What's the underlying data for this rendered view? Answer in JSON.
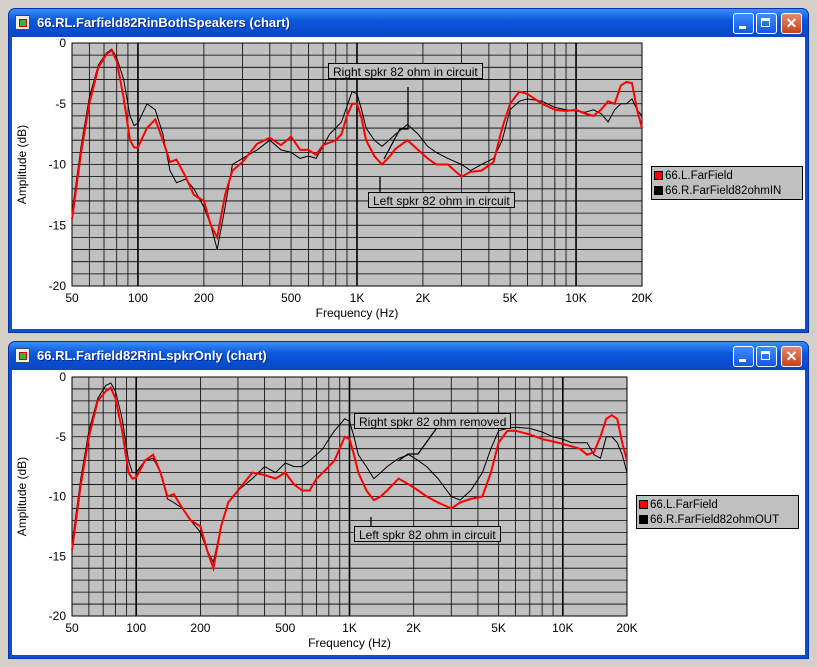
{
  "windows": [
    {
      "title": "66.RL.Farfield82RinBothSpeakers (chart)",
      "legend": [
        {
          "name": "66.L.FarField",
          "color": "#ff0000"
        },
        {
          "name": "66.R.FarField82ohmIN",
          "color": "#000000"
        }
      ],
      "annotations": [
        {
          "text": "Right spkr 82 ohm in circuit"
        },
        {
          "text": "Left spkr 82 ohm in circuit"
        }
      ]
    },
    {
      "title": "66.RL.Farfield82RinLspkrOnly (chart)",
      "legend": [
        {
          "name": "66.L.FarField",
          "color": "#ff0000"
        },
        {
          "name": "66.R.FarField82ohmOUT",
          "color": "#000000"
        }
      ],
      "annotations": [
        {
          "text": "Right spkr 82 ohm removed"
        },
        {
          "text": "Left spkr 82 ohm in circuit"
        }
      ]
    }
  ],
  "chart_data": [
    {
      "type": "line",
      "xlabel": "Frequency (Hz)",
      "ylabel": "Amplitude (dB)",
      "xscale": "log",
      "xlim": [
        50,
        20000
      ],
      "ylim": [
        -20,
        0
      ],
      "x_ticks": [
        50,
        100,
        200,
        500,
        1000,
        2000,
        5000,
        10000,
        20000
      ],
      "x_tick_labels": [
        "50",
        "100",
        "200",
        "500",
        "1K",
        "2K",
        "5K",
        "10K",
        "20K"
      ],
      "y_ticks": [
        0,
        -5,
        -10,
        -15,
        -20
      ],
      "y_tick_labels": [
        "0",
        "-5",
        "-10",
        "-15",
        "-20"
      ],
      "grid": true,
      "legend_position": "right",
      "series": [
        {
          "name": "66.L.FarField",
          "color": "#ff0000",
          "x": [
            50,
            55,
            60,
            66,
            72,
            76,
            80,
            86,
            92,
            96,
            100,
            110,
            120,
            130,
            140,
            150,
            165,
            180,
            200,
            215,
            230,
            250,
            270,
            300,
            350,
            400,
            450,
            500,
            550,
            600,
            650,
            700,
            750,
            800,
            850,
            900,
            950,
            1000,
            1050,
            1100,
            1200,
            1300,
            1400,
            1500,
            1700,
            1900,
            2100,
            2300,
            2600,
            3000,
            3300,
            3700,
            4200,
            4600,
            5000,
            5500,
            6000,
            7000,
            8000,
            9000,
            10000,
            11000,
            12000,
            13000,
            14000,
            15000,
            16000,
            17000,
            18000,
            19000,
            20000
          ],
          "y": [
            -14.5,
            -9,
            -5,
            -2,
            -0.9,
            -0.6,
            -1.5,
            -4.5,
            -8,
            -8.6,
            -8.6,
            -7,
            -6.3,
            -8,
            -9.8,
            -9.6,
            -11,
            -12.5,
            -13,
            -15,
            -16,
            -12.5,
            -10.5,
            -9.8,
            -8.3,
            -7.8,
            -8.4,
            -7.7,
            -8.8,
            -8.8,
            -9.2,
            -8.4,
            -8.2,
            -8,
            -7.5,
            -6,
            -5,
            -5,
            -6.2,
            -8,
            -9.3,
            -10,
            -9.4,
            -8.7,
            -8,
            -8.8,
            -9.5,
            -10,
            -10,
            -11,
            -10.6,
            -10.5,
            -9.8,
            -7,
            -5,
            -4,
            -4.2,
            -5,
            -5.5,
            -5.6,
            -5.5,
            -5.8,
            -6,
            -5.5,
            -4.8,
            -5,
            -3.5,
            -3.2,
            -3.3,
            -5.5,
            -7
          ]
        },
        {
          "name": "66.R.FarField82ohmIN",
          "color": "#000000",
          "x": [
            50,
            55,
            60,
            66,
            72,
            76,
            80,
            86,
            92,
            96,
            100,
            110,
            120,
            130,
            140,
            150,
            165,
            180,
            200,
            215,
            230,
            250,
            270,
            300,
            350,
            400,
            450,
            500,
            550,
            600,
            650,
            700,
            750,
            800,
            850,
            900,
            950,
            1000,
            1050,
            1100,
            1200,
            1300,
            1400,
            1500,
            1700,
            1900,
            2100,
            2300,
            2600,
            3000,
            3300,
            3700,
            4200,
            4600,
            5000,
            5500,
            6000,
            7000,
            8000,
            9000,
            10000,
            11000,
            12000,
            13000,
            14000,
            15000,
            16000,
            17000,
            18000,
            19000,
            20000
          ],
          "y": [
            -14,
            -8.5,
            -4.5,
            -1.8,
            -0.8,
            -0.5,
            -1.2,
            -3,
            -6,
            -6.8,
            -6.6,
            -5,
            -5.5,
            -7.5,
            -10.5,
            -11.5,
            -11.2,
            -12,
            -13.5,
            -15,
            -17,
            -13.5,
            -10,
            -9.5,
            -8.8,
            -8,
            -8.8,
            -9,
            -9.5,
            -9.3,
            -9.5,
            -8.5,
            -7.5,
            -7,
            -6.5,
            -5.2,
            -4,
            -4.2,
            -5.5,
            -7,
            -8,
            -8.5,
            -8,
            -7.5,
            -6.7,
            -7.5,
            -8.5,
            -9,
            -9.5,
            -10,
            -10.5,
            -10,
            -9.5,
            -8,
            -5.5,
            -4.8,
            -4.6,
            -4.8,
            -5.3,
            -5.5,
            -5.6,
            -5.7,
            -5.5,
            -5.8,
            -6.5,
            -5.5,
            -5,
            -5,
            -4.6,
            -5.5,
            -6
          ]
        }
      ]
    },
    {
      "type": "line",
      "xlabel": "Frequency (Hz)",
      "ylabel": "Amplitude (dB)",
      "xscale": "log",
      "xlim": [
        50,
        20000
      ],
      "ylim": [
        -20,
        0
      ],
      "x_ticks": [
        50,
        100,
        200,
        500,
        1000,
        2000,
        5000,
        10000,
        20000
      ],
      "x_tick_labels": [
        "50",
        "100",
        "200",
        "500",
        "1K",
        "2K",
        "5K",
        "10K",
        "20K"
      ],
      "y_ticks": [
        0,
        -5,
        -10,
        -15,
        -20
      ],
      "y_tick_labels": [
        "0",
        "-5",
        "-10",
        "-15",
        "-20"
      ],
      "grid": true,
      "legend_position": "right",
      "series": [
        {
          "name": "66.L.FarField",
          "color": "#ff0000",
          "x": [
            50,
            55,
            60,
            66,
            72,
            76,
            80,
            86,
            92,
            96,
            100,
            110,
            120,
            130,
            140,
            150,
            165,
            180,
            200,
            215,
            230,
            250,
            270,
            300,
            350,
            400,
            450,
            500,
            550,
            600,
            650,
            700,
            750,
            800,
            850,
            900,
            950,
            1000,
            1050,
            1100,
            1200,
            1300,
            1400,
            1500,
            1700,
            1900,
            2100,
            2300,
            2600,
            3000,
            3300,
            3700,
            4200,
            4600,
            5000,
            5500,
            6000,
            7000,
            8000,
            9000,
            10000,
            11000,
            12000,
            13000,
            14000,
            15000,
            16000,
            17000,
            18000,
            19000,
            20000
          ],
          "y": [
            -14.5,
            -9,
            -5,
            -2,
            -1.2,
            -0.9,
            -1.8,
            -4.5,
            -8,
            -8.5,
            -8.4,
            -7,
            -6.5,
            -8,
            -10,
            -9.8,
            -11,
            -12,
            -12.5,
            -14.5,
            -16,
            -12.5,
            -10.5,
            -9.5,
            -8,
            -8.2,
            -8.5,
            -8,
            -9,
            -9.5,
            -9.5,
            -8.5,
            -8,
            -7.5,
            -7,
            -6,
            -5,
            -5.2,
            -6.5,
            -8,
            -9.5,
            -10.3,
            -10,
            -9.5,
            -8.5,
            -9,
            -9.5,
            -10,
            -10.5,
            -11,
            -10.5,
            -10.2,
            -10,
            -8,
            -5.5,
            -4.5,
            -4.5,
            -4.8,
            -5.2,
            -5.4,
            -5.6,
            -5.8,
            -6,
            -6.5,
            -6.3,
            -5,
            -3.5,
            -3.2,
            -3.5,
            -5.5,
            -7
          ]
        },
        {
          "name": "66.R.FarField82ohmOUT",
          "color": "#000000",
          "x": [
            50,
            55,
            60,
            66,
            72,
            76,
            80,
            86,
            92,
            96,
            100,
            110,
            120,
            130,
            140,
            150,
            165,
            180,
            200,
            215,
            230,
            250,
            270,
            300,
            350,
            400,
            450,
            500,
            550,
            600,
            650,
            700,
            750,
            800,
            850,
            900,
            950,
            1000,
            1050,
            1100,
            1200,
            1300,
            1400,
            1500,
            1700,
            1900,
            2100,
            2300,
            2600,
            3000,
            3300,
            3700,
            4200,
            4600,
            5000,
            5500,
            6000,
            7000,
            8000,
            9000,
            10000,
            11000,
            12000,
            13000,
            14000,
            15000,
            16000,
            17000,
            18000,
            19000,
            20000
          ],
          "y": [
            -14,
            -8.5,
            -4.5,
            -1.8,
            -0.7,
            -0.5,
            -1.2,
            -3.5,
            -7,
            -8,
            -8,
            -7,
            -6.8,
            -8,
            -10.2,
            -10.5,
            -11,
            -12,
            -13,
            -14.5,
            -15.5,
            -12.5,
            -10.5,
            -9.5,
            -8.5,
            -7.5,
            -8,
            -7.2,
            -7.5,
            -7.5,
            -7,
            -6.5,
            -6,
            -5.2,
            -4.5,
            -4,
            -3.5,
            -3.7,
            -5,
            -6.5,
            -7.5,
            -8.5,
            -8,
            -7.5,
            -6.8,
            -6.5,
            -7,
            -7.5,
            -8.5,
            -10,
            -10.3,
            -9.5,
            -8,
            -6,
            -4.5,
            -4.3,
            -4.2,
            -4.3,
            -4.6,
            -5,
            -5.2,
            -5.5,
            -5.5,
            -5.5,
            -6.5,
            -6.8,
            -5,
            -5,
            -5.5,
            -6.5,
            -8
          ]
        }
      ]
    }
  ]
}
